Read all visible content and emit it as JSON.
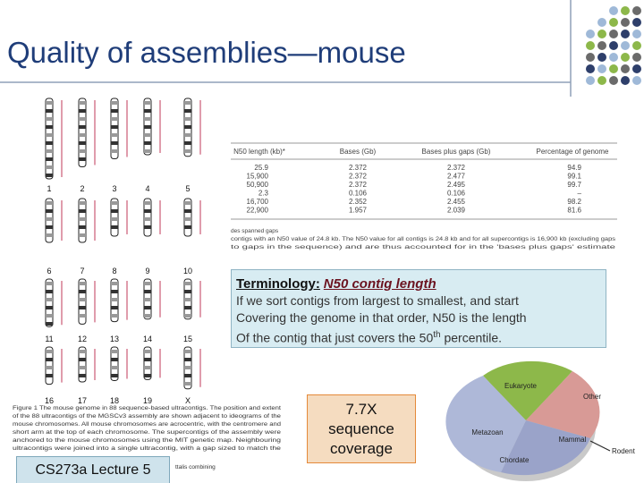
{
  "header": {
    "title": "Quality of assemblies—mouse"
  },
  "figure": {
    "chromosomes": [
      "1",
      "2",
      "3",
      "4",
      "5",
      "6",
      "7",
      "8",
      "9",
      "10",
      "11",
      "12",
      "13",
      "14",
      "15",
      "16",
      "17",
      "18",
      "19",
      "X"
    ],
    "caption": [
      "Figure 1 The mouse genome in 88 sequence-based ultracontigs. The position and extent",
      "of the 88 ultracontigs of the MGSCv3 assembly are shown adjacent to ideograms of the",
      "mouse chromosomes. All mouse chromosomes are acrocentric, with the centromere and",
      "short arm at the top of each chromosome. The supercontigs of the assembly were",
      "anchored to the mouse chromosomes using the MIT genetic map. Neighbouring",
      "ultracontigs were joined into a single ultracontig, with a gap sized to match the"
    ]
  },
  "table": {
    "header": [
      "N50 length (kb)*",
      "Bases (Gb)",
      "Bases plus gaps (Gb)",
      "Percentage of genome"
    ],
    "rows": [
      [
        "25.9",
        "2.372",
        "2.372",
        "94.9"
      ],
      [
        "15,900",
        "2.372",
        "2.477",
        "99.1"
      ],
      [
        "50,900",
        "2.372",
        "2.495",
        "99.7"
      ],
      [
        "2.3",
        "0.106",
        "0.106",
        "–"
      ],
      [
        "16,700",
        "2.352",
        "2.455",
        "98.2"
      ],
      [
        "22,900",
        "1.957",
        "2.039",
        "81.6"
      ]
    ],
    "notes": [
      "des spanned gaps",
      "contigs with an N50 value of 24.8 kb. The N50 value for all contigs is 24.8 kb and for all supercontigs is 16,900 kb (excluding gaps",
      "to gaps in the sequence) and are thus accounted for in the 'bases plus gaps' estimate"
    ]
  },
  "terminology": {
    "label": "Terminology:",
    "term": "N50 contig length",
    "lines": [
      "If we sort contigs from largest to smallest, and start",
      "Covering the genome in that order, N50 is the length",
      "Of the contig that just covers the 50"
    ],
    "sup": "th",
    "end": " percentile."
  },
  "coverage": [
    "7.7X",
    "sequence",
    "coverage"
  ],
  "pie_labels": [
    "Eukaryote",
    "Other",
    "Metazoan",
    "Mammal",
    "Rodent",
    "Chordate"
  ],
  "footer": {
    "lecture": "CS273a Lecture 5",
    "caption_tail": "ttalis combining"
  }
}
